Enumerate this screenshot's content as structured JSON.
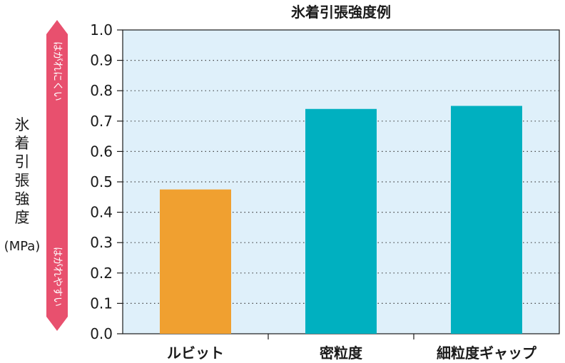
{
  "chart_data": {
    "type": "bar",
    "title": "氷着引張強度例",
    "ylabel": "氷着引張強度",
    "ylabel_unit": "(MPa)",
    "categories": [
      "ルビット",
      "密粒度",
      "細粒度ギャップ"
    ],
    "values": [
      0.475,
      0.74,
      0.75
    ],
    "colors": [
      "#f0a030",
      "#00b0c0",
      "#00b0c0"
    ],
    "ylim": [
      0.0,
      1.0
    ],
    "yticks": [
      "0.0",
      "0.1",
      "0.2",
      "0.3",
      "0.4",
      "0.5",
      "0.6",
      "0.7",
      "0.8",
      "0.9",
      "1.0"
    ],
    "grid": true,
    "plot_background": "#dff0fa",
    "arrow": {
      "color": "#e8506e",
      "top_text": "はがれにくい",
      "bottom_text": "はがれやすい"
    }
  }
}
